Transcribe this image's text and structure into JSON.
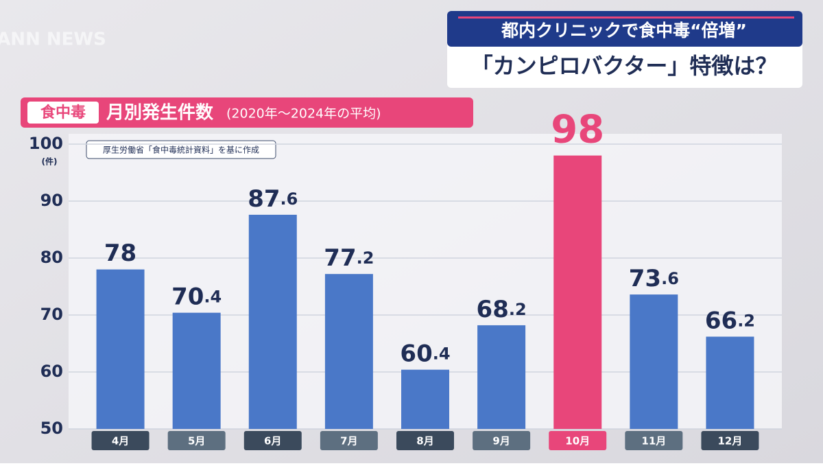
{
  "logo": "ANN NEWS",
  "header": {
    "line1": "都内クリニックで食中毒“倍増”",
    "line2": "「カンピロバクター」特徴は？"
  },
  "chart_data": {
    "type": "bar",
    "tag": "食中毒",
    "title": "月別発生件数",
    "subtitle": "(2020年～2024年の平均)",
    "source": "厚生労働省「食中毒統計資料」を基に作成",
    "y_unit": "(件)",
    "categories": [
      "4月",
      "5月",
      "6月",
      "7月",
      "8月",
      "9月",
      "10月",
      "11月",
      "12月"
    ],
    "values": [
      78,
      70.4,
      87.6,
      77.2,
      60.4,
      68.2,
      98,
      73.6,
      66.2
    ],
    "color": "#4a78c8",
    "colors": [
      "#4a78c8",
      "#4a78c8",
      "#4a78c8",
      "#4a78c8",
      "#4a78c8",
      "#4a78c8",
      "#e8467a",
      "#4a78c8",
      "#4a78c8"
    ],
    "ylim": [
      50,
      100
    ],
    "yticks": [
      50,
      60,
      70,
      80,
      90,
      100
    ],
    "grid": true
  }
}
